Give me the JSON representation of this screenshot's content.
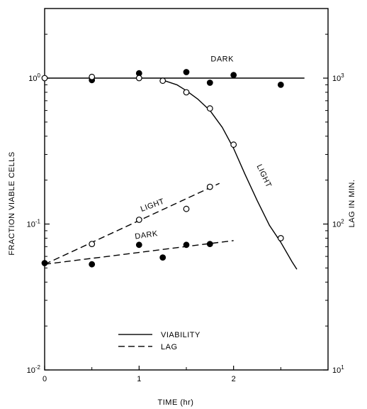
{
  "chart_data": {
    "type": "scatter",
    "title": "",
    "xlabel": "TIME (hr)",
    "ylabel_left": "FRACTION VIABLE CELLS",
    "ylabel_right": "LAG IN MIN.",
    "xlim": [
      0,
      3
    ],
    "ylim_left": [
      0.01,
      3
    ],
    "ylim_right": [
      10,
      3000
    ],
    "yscale": "log",
    "grid": false,
    "x_ticks": [
      {
        "value": 0,
        "label": "0"
      },
      {
        "value": 1,
        "label": "1"
      },
      {
        "value": 2,
        "label": "2"
      }
    ],
    "y_ticks_left": [
      {
        "value": 1,
        "base": "10",
        "exp": "0"
      },
      {
        "value": 0.1,
        "base": "10",
        "exp": "-1"
      },
      {
        "value": 0.01,
        "base": "10",
        "exp": "-2"
      }
    ],
    "y_ticks_right": [
      {
        "value": 1000,
        "base": "10",
        "exp": "3"
      },
      {
        "value": 100,
        "base": "10",
        "exp": "2"
      },
      {
        "value": 10,
        "base": "10",
        "exp": "1"
      }
    ],
    "series": [
      {
        "name": "DARK",
        "quantity": "viability",
        "marker": "filled-circle",
        "points": [
          [
            0.5,
            0.97
          ],
          [
            1.0,
            1.08
          ],
          [
            1.5,
            1.1
          ],
          [
            1.75,
            0.93
          ],
          [
            2.0,
            1.05
          ],
          [
            2.5,
            0.9
          ]
        ]
      },
      {
        "name": "LIGHT",
        "quantity": "viability",
        "marker": "open-circle",
        "points": [
          [
            0,
            1.0
          ],
          [
            0.5,
            1.02
          ],
          [
            1.0,
            1.0
          ],
          [
            1.25,
            0.96
          ],
          [
            1.5,
            0.8
          ],
          [
            1.75,
            0.62
          ],
          [
            2.0,
            0.35
          ],
          [
            2.5,
            0.08
          ]
        ]
      },
      {
        "name": "LIGHT",
        "quantity": "lag",
        "marker": "open-circle",
        "points": [
          [
            0.5,
            0.073
          ],
          [
            1.0,
            0.107
          ],
          [
            1.5,
            0.127
          ],
          [
            1.75,
            0.18
          ]
        ]
      },
      {
        "name": "DARK",
        "quantity": "lag",
        "marker": "filled-circle",
        "points": [
          [
            0,
            0.054
          ],
          [
            0.5,
            0.053
          ],
          [
            1.0,
            0.072
          ],
          [
            1.25,
            0.059
          ],
          [
            1.5,
            0.072
          ],
          [
            1.75,
            0.073
          ]
        ]
      }
    ],
    "lines": [
      {
        "quantity": "viability",
        "style": "solid",
        "points": [
          [
            0,
            1.0
          ],
          [
            2.75,
            1.0
          ]
        ]
      },
      {
        "quantity": "viability",
        "style": "solid",
        "points": [
          [
            1.25,
            0.97
          ],
          [
            1.4,
            0.9
          ],
          [
            1.5,
            0.82
          ],
          [
            1.62,
            0.72
          ],
          [
            1.75,
            0.6
          ],
          [
            1.88,
            0.46
          ],
          [
            2.0,
            0.33
          ],
          [
            2.12,
            0.22
          ],
          [
            2.25,
            0.145
          ],
          [
            2.38,
            0.098
          ],
          [
            2.5,
            0.075
          ],
          [
            2.62,
            0.055
          ],
          [
            2.67,
            0.049
          ]
        ]
      },
      {
        "quantity": "lag",
        "style": "dashed",
        "points": [
          [
            0,
            0.053
          ],
          [
            1.85,
            0.19
          ]
        ]
      },
      {
        "quantity": "lag",
        "style": "dashed",
        "points": [
          [
            0,
            0.053
          ],
          [
            2.0,
            0.077
          ]
        ]
      }
    ],
    "annotations": [
      {
        "text": "DARK",
        "x": 1.88,
        "y": 1.3,
        "rotate": 0
      },
      {
        "text": "LIGHT",
        "x": 2.3,
        "y": 0.21,
        "rotate": 65
      },
      {
        "text": "LIGHT",
        "x": 1.15,
        "y": 0.13,
        "rotate": -20
      },
      {
        "text": "DARK",
        "x": 1.08,
        "y": 0.081,
        "rotate": -8
      }
    ],
    "legend": {
      "placement": "bottom-center",
      "entries": [
        {
          "label": "VIABILITY",
          "style": "solid"
        },
        {
          "label": "LAG",
          "style": "dashed"
        }
      ]
    }
  }
}
